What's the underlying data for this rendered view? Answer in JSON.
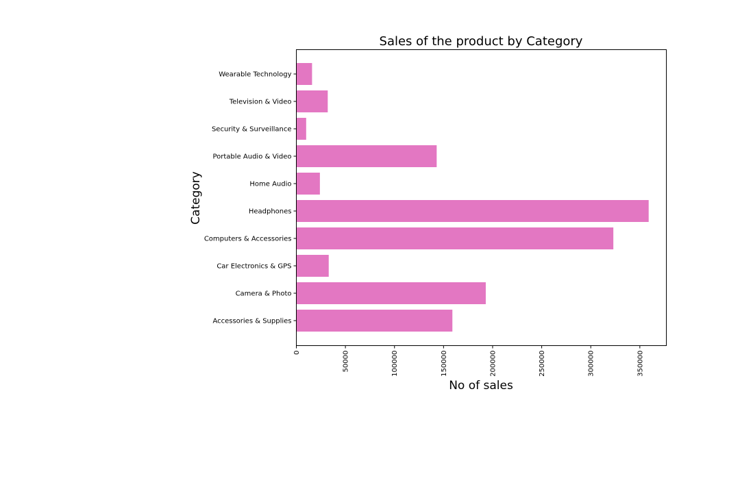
{
  "chart_data": {
    "type": "bar",
    "orientation": "horizontal",
    "title": "Sales of the product by Category",
    "xlabel": "No of sales",
    "ylabel": "Category",
    "categories": [
      "Accessories & Supplies",
      "Camera & Photo",
      "Car Electronics & GPS",
      "Computers & Accessories",
      "Headphones",
      "Home Audio",
      "Portable Audio & Video",
      "Security & Surveillance",
      "Television & Video",
      "Wearable Technology"
    ],
    "values": [
      159000,
      193000,
      33000,
      323000,
      359000,
      24000,
      143000,
      10000,
      32000,
      16000
    ],
    "xlim": [
      0,
      377000
    ],
    "xticks": [
      0,
      50000,
      100000,
      150000,
      200000,
      250000,
      300000,
      350000
    ],
    "xtick_labels": [
      "0",
      "50000",
      "100000",
      "150000",
      "200000",
      "250000",
      "300000",
      "350000"
    ],
    "xtick_rotation": "vertical",
    "bar_color": "#e377c2",
    "grid": false,
    "legend": "none"
  }
}
